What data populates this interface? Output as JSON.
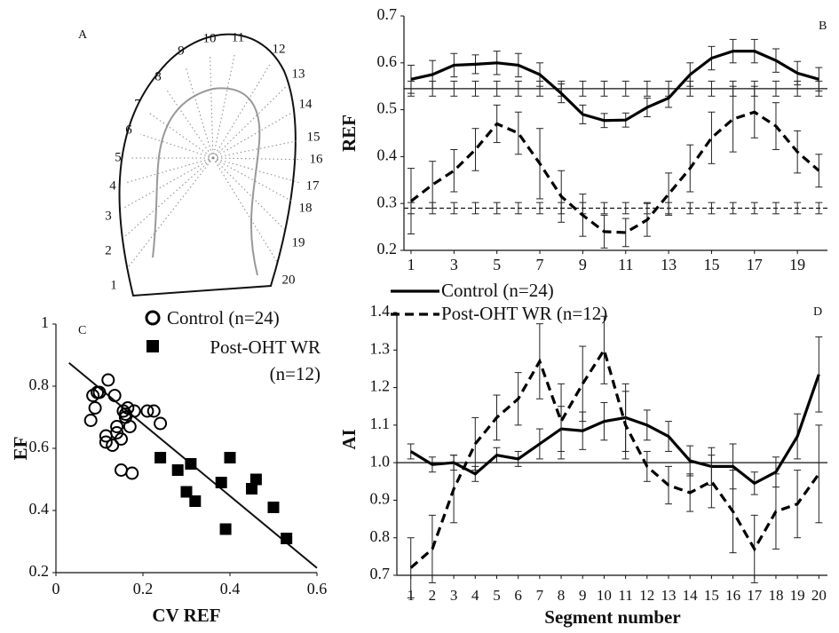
{
  "diagram": {
    "panel_label": "A",
    "segment_labels": [
      "1",
      "2",
      "3",
      "4",
      "5",
      "6",
      "7",
      "8",
      "9",
      "10",
      "11",
      "12",
      "13",
      "14",
      "15",
      "16",
      "17",
      "18",
      "19",
      "20"
    ]
  },
  "chart_data": [
    {
      "type": "line",
      "panel_label": "B",
      "y_label": "REF",
      "x": [
        1,
        2,
        3,
        4,
        5,
        6,
        7,
        8,
        9,
        10,
        11,
        12,
        13,
        14,
        15,
        16,
        17,
        18,
        19,
        20
      ],
      "xlim": [
        0.67,
        20.4
      ],
      "xticks": [
        1,
        3,
        5,
        7,
        9,
        11,
        13,
        15,
        17,
        19
      ],
      "ylim": [
        0.2,
        0.7
      ],
      "yticks": [
        0.2,
        0.3,
        0.4,
        0.5,
        0.6,
        0.7
      ],
      "series": [
        {
          "name": "Control (n=24)",
          "color": "#000000",
          "dashed": false,
          "values": [
            0.565,
            0.575,
            0.595,
            0.597,
            0.6,
            0.595,
            0.575,
            0.535,
            0.49,
            0.477,
            0.478,
            0.505,
            0.525,
            0.575,
            0.61,
            0.625,
            0.625,
            0.605,
            0.578,
            0.565
          ],
          "errors": [
            0.03,
            0.03,
            0.025,
            0.02,
            0.025,
            0.025,
            0.025,
            0.02,
            0.02,
            0.015,
            0.015,
            0.02,
            0.02,
            0.025,
            0.025,
            0.025,
            0.025,
            0.025,
            0.025,
            0.025
          ]
        },
        {
          "name": "Post-OHT WR (n=12)",
          "color": "#000000",
          "dashed": true,
          "values": [
            0.305,
            0.34,
            0.37,
            0.415,
            0.47,
            0.45,
            0.385,
            0.315,
            0.275,
            0.24,
            0.238,
            0.265,
            0.32,
            0.375,
            0.44,
            0.48,
            0.495,
            0.465,
            0.41,
            0.37
          ],
          "errors": [
            0.07,
            0.05,
            0.045,
            0.045,
            0.04,
            0.045,
            0.075,
            0.055,
            0.045,
            0.035,
            0.03,
            0.035,
            0.045,
            0.05,
            0.055,
            0.07,
            0.055,
            0.05,
            0.045,
            0.035
          ]
        }
      ],
      "reference_lines": [
        {
          "value": 0.545,
          "error": 0.016,
          "dashed": false
        },
        {
          "value": 0.29,
          "error": 0.012,
          "dashed": true
        }
      ]
    },
    {
      "type": "scatter",
      "panel_label": "C",
      "x_label": "CV REF",
      "y_label": "EF",
      "xlim": [
        0,
        0.6
      ],
      "xticks": [
        0,
        0.2,
        0.4,
        0.6
      ],
      "ylim": [
        0.2,
        1
      ],
      "yticks": [
        0.2,
        0.4,
        0.6,
        0.8,
        1
      ],
      "series": [
        {
          "name": "Control (n=24)",
          "marker": "circle",
          "color": "#000000",
          "x": [
            0.08,
            0.085,
            0.09,
            0.095,
            0.1,
            0.12,
            0.115,
            0.135,
            0.13,
            0.14,
            0.14,
            0.15,
            0.155,
            0.16,
            0.16,
            0.165,
            0.15,
            0.17,
            0.175,
            0.18,
            0.21,
            0.225,
            0.24,
            0.115
          ],
          "y": [
            0.69,
            0.77,
            0.73,
            0.78,
            0.78,
            0.82,
            0.62,
            0.77,
            0.61,
            0.67,
            0.65,
            0.63,
            0.72,
            0.71,
            0.7,
            0.73,
            0.53,
            0.67,
            0.52,
            0.72,
            0.72,
            0.72,
            0.68,
            0.64
          ]
        },
        {
          "name": "Post-OHT WR (n=12)",
          "marker": "square",
          "color": "#000000",
          "x": [
            0.28,
            0.3,
            0.31,
            0.32,
            0.38,
            0.39,
            0.4,
            0.45,
            0.46,
            0.5,
            0.53,
            0.24
          ],
          "y": [
            0.53,
            0.46,
            0.55,
            0.43,
            0.49,
            0.34,
            0.57,
            0.47,
            0.5,
            0.41,
            0.31,
            0.57
          ]
        }
      ],
      "fit_line": {
        "x": [
          0.03,
          0.6
        ],
        "y": [
          0.875,
          0.215
        ]
      }
    },
    {
      "type": "line",
      "panel_label": "D",
      "x_label": "Segment number",
      "y_label": "AI",
      "x": [
        1,
        2,
        3,
        4,
        5,
        6,
        7,
        8,
        9,
        10,
        11,
        12,
        13,
        14,
        15,
        16,
        17,
        18,
        19,
        20
      ],
      "xlim": [
        0.35,
        20.4
      ],
      "xticks": [
        1,
        2,
        3,
        4,
        5,
        6,
        7,
        8,
        9,
        10,
        11,
        12,
        13,
        14,
        15,
        16,
        17,
        18,
        19,
        20
      ],
      "ylim": [
        0.7,
        1.4
      ],
      "yticks": [
        0.7,
        0.8,
        0.9,
        {
          "value": 1,
          "label": "1.0"
        },
        1.1,
        1.2,
        1.3,
        1.4
      ],
      "series": [
        {
          "color": "#000000",
          "dashed": false,
          "values": [
            1.03,
            0.995,
            1.0,
            0.97,
            1.02,
            1.01,
            1.05,
            1.09,
            1.085,
            1.11,
            1.12,
            1.1,
            1.07,
            1.005,
            0.99,
            0.99,
            0.945,
            0.975,
            1.07,
            1.235
          ],
          "errors": [
            0.02,
            0.02,
            0.02,
            0.02,
            0.02,
            0.02,
            0.04,
            0.06,
            0.05,
            0.05,
            0.09,
            0.04,
            0.04,
            0.04,
            0.05,
            0.06,
            0.03,
            0.04,
            0.06,
            0.1
          ]
        },
        {
          "color": "#000000",
          "dashed": true,
          "values": [
            0.72,
            0.77,
            0.93,
            1.05,
            1.12,
            1.17,
            1.27,
            1.11,
            1.21,
            1.3,
            1.1,
            0.99,
            0.94,
            0.92,
            0.95,
            0.87,
            0.77,
            0.87,
            0.89,
            0.97
          ],
          "errors": [
            0.08,
            0.09,
            0.09,
            0.07,
            0.06,
            0.07,
            0.1,
            0.1,
            0.1,
            0.09,
            0.09,
            0.04,
            0.05,
            0.05,
            0.07,
            0.11,
            0.09,
            0.1,
            0.09,
            0.13
          ]
        }
      ],
      "reference_lines": [
        {
          "value": 1,
          "dashed": false
        }
      ]
    }
  ]
}
